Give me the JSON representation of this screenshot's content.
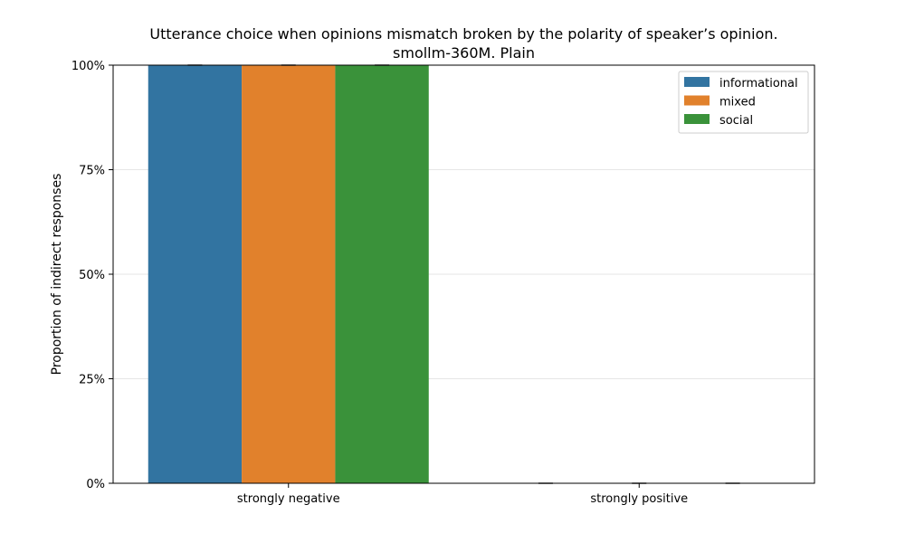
{
  "chart_data": {
    "type": "bar",
    "title": "Utterance choice when opinions mismatch broken by the polarity of speaker’s opinion.",
    "subtitle": "smollm-360M. Plain",
    "xlabel": "",
    "ylabel": "Proportion of indirect responses",
    "categories": [
      "strongly negative",
      "strongly positive"
    ],
    "series": [
      {
        "name": "informational",
        "values": [
          1.0,
          0.0
        ],
        "color": "#3274a1"
      },
      {
        "name": "mixed",
        "values": [
          1.0,
          0.0
        ],
        "color": "#e1812c"
      },
      {
        "name": "social",
        "values": [
          1.0,
          0.0
        ],
        "color": "#3a923a"
      }
    ],
    "ylim": [
      0,
      1
    ],
    "yticks": [
      0,
      0.25,
      0.5,
      0.75,
      1.0
    ],
    "ytick_labels": [
      "0%",
      "25%",
      "50%",
      "75%",
      "100%"
    ],
    "grid": true,
    "legend_position": "top-right"
  }
}
